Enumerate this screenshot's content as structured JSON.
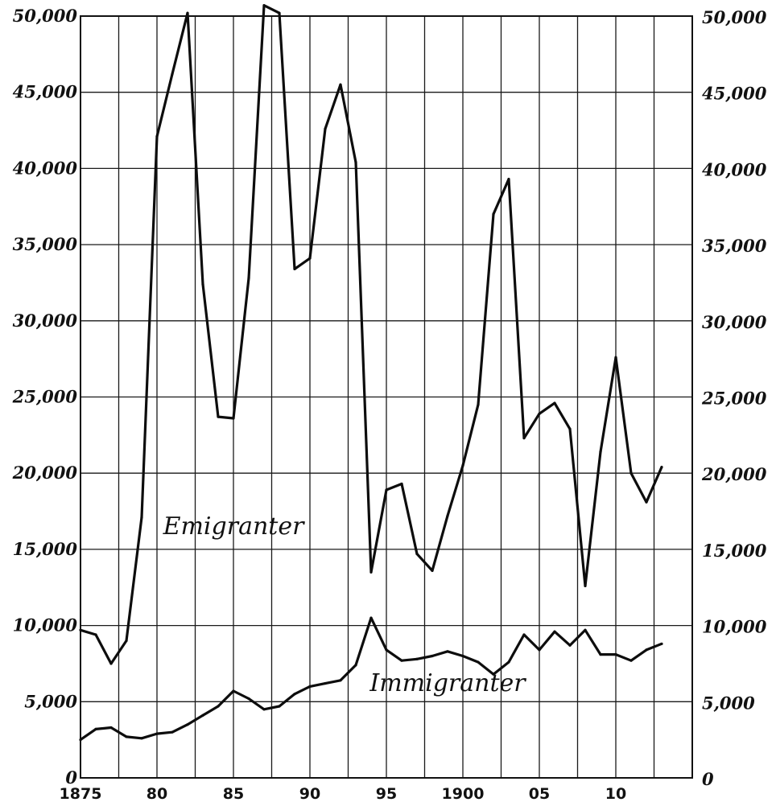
{
  "chart_data": {
    "type": "line",
    "x": [
      1875,
      1876,
      1877,
      1878,
      1879,
      1880,
      1881,
      1882,
      1883,
      1884,
      1885,
      1886,
      1887,
      1888,
      1889,
      1890,
      1891,
      1892,
      1893,
      1894,
      1895,
      1896,
      1897,
      1898,
      1899,
      1900,
      1901,
      1902,
      1903,
      1904,
      1905,
      1906,
      1907,
      1908,
      1909,
      1910,
      1911,
      1912,
      1913
    ],
    "series": [
      {
        "name": "Emigranter",
        "values": [
          9700,
          9400,
          7500,
          9000,
          17100,
          42100,
          46200,
          50200,
          32400,
          23700,
          23600,
          32800,
          50700,
          50200,
          33400,
          34100,
          42600,
          45500,
          40400,
          13500,
          18900,
          19300,
          14700,
          13600,
          17200,
          20500,
          24500,
          37000,
          39300,
          22300,
          23900,
          24600,
          22900,
          12600,
          21400,
          27600,
          20000,
          18100,
          20400
        ]
      },
      {
        "name": "Immigranter",
        "values": [
          2500,
          3200,
          3300,
          2700,
          2600,
          2900,
          3000,
          3500,
          4100,
          4700,
          5700,
          5200,
          4500,
          4700,
          5500,
          6000,
          6200,
          6400,
          7400,
          10500,
          8400,
          7700,
          7800,
          8000,
          8300,
          8000,
          7600,
          6800,
          7600,
          9400,
          8400,
          9600,
          8700,
          9700,
          8100,
          8100,
          7700,
          8400,
          8800
        ]
      }
    ],
    "xlim": [
      1875,
      1915
    ],
    "ylim": [
      0,
      50000
    ],
    "x_ticks": [
      {
        "value": 1875,
        "label": "1875"
      },
      {
        "value": 1880,
        "label": "80"
      },
      {
        "value": 1885,
        "label": "85"
      },
      {
        "value": 1890,
        "label": "90"
      },
      {
        "value": 1895,
        "label": "95"
      },
      {
        "value": 1900,
        "label": "1900"
      },
      {
        "value": 1905,
        "label": "05"
      },
      {
        "value": 1910,
        "label": "10"
      }
    ],
    "y_ticks": [
      {
        "value": 0,
        "label": "0"
      },
      {
        "value": 5000,
        "label": "5,000"
      },
      {
        "value": 10000,
        "label": "10,000"
      },
      {
        "value": 15000,
        "label": "15,000"
      },
      {
        "value": 20000,
        "label": "20,000"
      },
      {
        "value": 25000,
        "label": "25,000"
      },
      {
        "value": 30000,
        "label": "30,000"
      },
      {
        "value": 35000,
        "label": "35,000"
      },
      {
        "value": 40000,
        "label": "40,000"
      },
      {
        "value": 45000,
        "label": "45,000"
      },
      {
        "value": 50000,
        "label": "50,000"
      }
    ],
    "annotations": [
      {
        "text": "Emigranter",
        "x": 1885,
        "y": 16000
      },
      {
        "text": "Immigranter",
        "x": 1899,
        "y": 5700
      }
    ],
    "grid": true,
    "y_axis_both_sides": true,
    "title": "",
    "xlabel": "",
    "ylabel": ""
  }
}
